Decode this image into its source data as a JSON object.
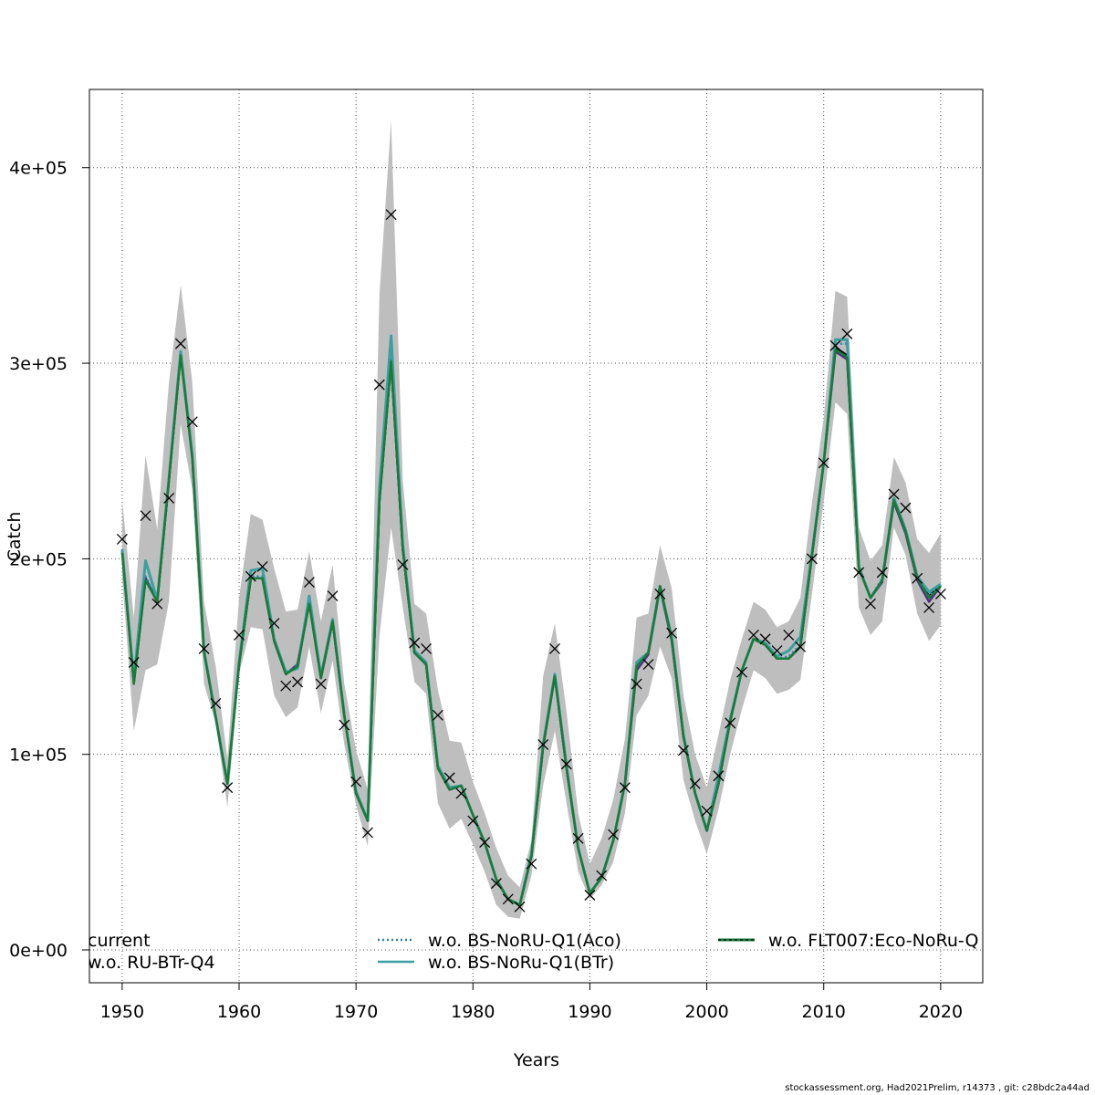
{
  "chart_data": {
    "type": "line",
    "title": "",
    "xlabel": "Years",
    "ylabel": "Catch",
    "xlim": [
      1947.2,
      2023.6
    ],
    "ylim": [
      -16800,
      440000
    ],
    "x_ticks": [
      1950,
      1960,
      1970,
      1980,
      1990,
      2000,
      2010,
      2020
    ],
    "x_tick_labels": [
      "1950",
      "1960",
      "1970",
      "1980",
      "1990",
      "2000",
      "2010",
      "2020"
    ],
    "y_ticks": [
      0,
      100000,
      200000,
      300000,
      400000
    ],
    "y_tick_labels": [
      "0e+00",
      "1e+05",
      "2e+05",
      "3e+05",
      "4e+05"
    ],
    "grid": true,
    "legend_position": "bottom",
    "years": [
      1950,
      1951,
      1952,
      1953,
      1954,
      1955,
      1956,
      1957,
      1958,
      1959,
      1960,
      1961,
      1962,
      1963,
      1964,
      1965,
      1966,
      1967,
      1968,
      1969,
      1970,
      1971,
      1972,
      1973,
      1974,
      1975,
      1976,
      1977,
      1978,
      1979,
      1980,
      1981,
      1982,
      1983,
      1984,
      1985,
      1986,
      1987,
      1988,
      1989,
      1990,
      1991,
      1992,
      1993,
      1994,
      1995,
      1996,
      1997,
      1998,
      1999,
      2000,
      2001,
      2002,
      2003,
      2004,
      2005,
      2006,
      2007,
      2008,
      2009,
      2010,
      2011,
      2012,
      2013,
      2014,
      2015,
      2016,
      2017,
      2018,
      2019,
      2020
    ],
    "observed_catch": [
      210000,
      147000,
      222000,
      177000,
      231000,
      310000,
      270000,
      154000,
      126000,
      83000,
      161000,
      191000,
      196000,
      167000,
      135000,
      137000,
      188000,
      136000,
      181000,
      115000,
      86000,
      60000,
      289000,
      376000,
      197000,
      157000,
      154000,
      120000,
      88000,
      80000,
      66000,
      55000,
      34000,
      26000,
      22000,
      44000,
      105000,
      154000,
      95000,
      57000,
      28000,
      38000,
      59000,
      83000,
      136000,
      146000,
      182000,
      162000,
      102000,
      85000,
      71000,
      89000,
      116000,
      142000,
      161000,
      159000,
      153000,
      161000,
      155000,
      200000,
      249000,
      309000,
      315000,
      193000,
      177000,
      193000,
      233000,
      226000,
      190000,
      175000,
      182000
    ],
    "ci_upper": [
      230000,
      170000,
      253000,
      215000,
      290000,
      340000,
      290000,
      178000,
      145000,
      98000,
      180000,
      223000,
      220000,
      195000,
      173000,
      174000,
      204000,
      168000,
      197000,
      136000,
      102000,
      82000,
      335000,
      424000,
      240000,
      177000,
      172000,
      133000,
      107000,
      106000,
      86000,
      70000,
      52000,
      38000,
      32000,
      56000,
      140000,
      167000,
      122000,
      70000,
      44000,
      57000,
      77000,
      108000,
      170000,
      172000,
      207000,
      185000,
      130000,
      100000,
      83000,
      110000,
      138000,
      159000,
      178000,
      174000,
      165000,
      168000,
      180000,
      229000,
      272000,
      337000,
      334000,
      216000,
      199000,
      207000,
      252000,
      239000,
      210000,
      203000,
      213000
    ],
    "ci_lower": [
      190000,
      112000,
      143000,
      146000,
      178000,
      269000,
      235000,
      136000,
      116000,
      73000,
      141000,
      165000,
      164000,
      130000,
      119000,
      124000,
      155000,
      121000,
      148000,
      105000,
      74000,
      53000,
      160000,
      216000,
      175000,
      137000,
      131000,
      75000,
      62000,
      67000,
      54000,
      40000,
      23000,
      17000,
      16000,
      38000,
      84000,
      112000,
      75000,
      40000,
      26000,
      33000,
      45000,
      70000,
      120000,
      130000,
      155000,
      139000,
      87000,
      66000,
      49000,
      72000,
      100000,
      123000,
      143000,
      139000,
      131000,
      133000,
      138000,
      182000,
      229000,
      280000,
      274000,
      175000,
      161000,
      168000,
      216000,
      202000,
      172000,
      158000,
      166000
    ],
    "series": [
      {
        "name": "current",
        "color": "#000000",
        "dash": "solid",
        "values": [
          204000,
          137000,
          190000,
          178000,
          240000,
          305000,
          252000,
          153000,
          119000,
          85000,
          146000,
          190000,
          190000,
          158000,
          141000,
          146000,
          178000,
          139000,
          168000,
          120000,
          80000,
          66000,
          230000,
          301000,
          205000,
          152000,
          146000,
          93000,
          82000,
          84000,
          69000,
          55000,
          36000,
          26000,
          23000,
          48000,
          104000,
          140000,
          93000,
          52000,
          29000,
          37000,
          56000,
          85000,
          146000,
          152000,
          186000,
          159000,
          109000,
          80000,
          61000,
          85000,
          117000,
          143000,
          159000,
          156000,
          149000,
          149000,
          155000,
          202000,
          249000,
          308000,
          304000,
          196000,
          180000,
          189000,
          230000,
          214000,
          190000,
          181000,
          186000
        ]
      },
      {
        "name": "w.o. RU-BTr-Q4",
        "color": "#4f2e7f",
        "dash": "solid",
        "values": [
          204000,
          137000,
          190000,
          178000,
          240000,
          305000,
          252000,
          153000,
          119000,
          85000,
          146000,
          190000,
          190000,
          158000,
          141000,
          146000,
          178000,
          139000,
          168000,
          120000,
          80000,
          66000,
          230000,
          301000,
          205000,
          152000,
          146000,
          93000,
          82000,
          84000,
          69000,
          55000,
          36000,
          26000,
          23000,
          48000,
          104000,
          140000,
          93000,
          52000,
          29000,
          37000,
          56000,
          85000,
          143000,
          151000,
          185000,
          158000,
          109000,
          80000,
          61000,
          85000,
          117000,
          143000,
          159000,
          156000,
          149000,
          149000,
          155000,
          202000,
          249000,
          306000,
          302000,
          196000,
          180000,
          188000,
          229000,
          213000,
          189000,
          178000,
          186000
        ]
      },
      {
        "name": "w.o. BS-NoRU-Q1(Aco)",
        "color": "#2a7fb8",
        "dash": "dotted",
        "values": [
          204000,
          137000,
          191000,
          178000,
          240000,
          305000,
          252000,
          153000,
          119000,
          85000,
          146000,
          191000,
          191000,
          158000,
          141000,
          146000,
          178000,
          139000,
          168000,
          120000,
          80000,
          66000,
          230000,
          302000,
          205000,
          152000,
          146000,
          93000,
          82000,
          84000,
          69000,
          55000,
          36000,
          26000,
          23000,
          48000,
          104000,
          140000,
          93000,
          52000,
          29000,
          37000,
          56000,
          85000,
          147000,
          152000,
          186000,
          159000,
          109000,
          80000,
          61000,
          85000,
          117000,
          143000,
          159000,
          156000,
          149000,
          150000,
          156000,
          202000,
          249000,
          310000,
          310000,
          196000,
          180000,
          190000,
          231000,
          215000,
          191000,
          181000,
          187000
        ]
      },
      {
        "name": "w.o. BS-NoRu-Q1(BTr)",
        "color": "#3aa0a0",
        "dash": "solid",
        "values": [
          205000,
          138000,
          199000,
          179000,
          241000,
          306000,
          253000,
          153000,
          119000,
          85000,
          147000,
          194000,
          195000,
          159000,
          142000,
          144000,
          181000,
          140000,
          169000,
          120000,
          81000,
          66000,
          236000,
          314000,
          207000,
          153000,
          147000,
          94000,
          83000,
          84000,
          69000,
          55000,
          36000,
          26000,
          23000,
          49000,
          105000,
          141000,
          94000,
          52000,
          29000,
          37000,
          56000,
          85000,
          147000,
          152000,
          186000,
          160000,
          110000,
          80000,
          61000,
          89000,
          118000,
          143000,
          159000,
          157000,
          150000,
          153000,
          160000,
          203000,
          249000,
          312000,
          312000,
          196000,
          180000,
          189000,
          231000,
          215000,
          191000,
          183000,
          187000
        ]
      },
      {
        "name": "w.o. FLT007:Eco-NoRu-Q",
        "color": "#1a7a3a",
        "dash": "solid",
        "values": [
          203000,
          136000,
          189000,
          178000,
          240000,
          304000,
          251000,
          152000,
          119000,
          85000,
          146000,
          190000,
          190000,
          158000,
          141000,
          145000,
          177000,
          139000,
          168000,
          120000,
          80000,
          66000,
          229000,
          301000,
          205000,
          152000,
          146000,
          93000,
          82000,
          84000,
          69000,
          55000,
          36000,
          26000,
          23000,
          48000,
          104000,
          140000,
          93000,
          52000,
          29000,
          37000,
          56000,
          85000,
          145000,
          152000,
          186000,
          159000,
          109000,
          80000,
          61000,
          85000,
          117000,
          143000,
          159000,
          156000,
          149000,
          149000,
          155000,
          202000,
          249000,
          307000,
          303000,
          195000,
          180000,
          189000,
          230000,
          214000,
          190000,
          180000,
          186000
        ]
      }
    ]
  },
  "legend": {
    "items": [
      {
        "label": "current"
      },
      {
        "label": "w.o. RU-BTr-Q4"
      },
      {
        "label": "w.o. BS-NoRU-Q1(Aco)"
      },
      {
        "label": "w.o. BS-NoRu-Q1(BTr)"
      },
      {
        "label": "w.o. FLT007:Eco-NoRu-Q"
      }
    ]
  },
  "footer": "stockassessment.org, Had2021Prelim, r14373 , git: c28bdc2a44ad"
}
